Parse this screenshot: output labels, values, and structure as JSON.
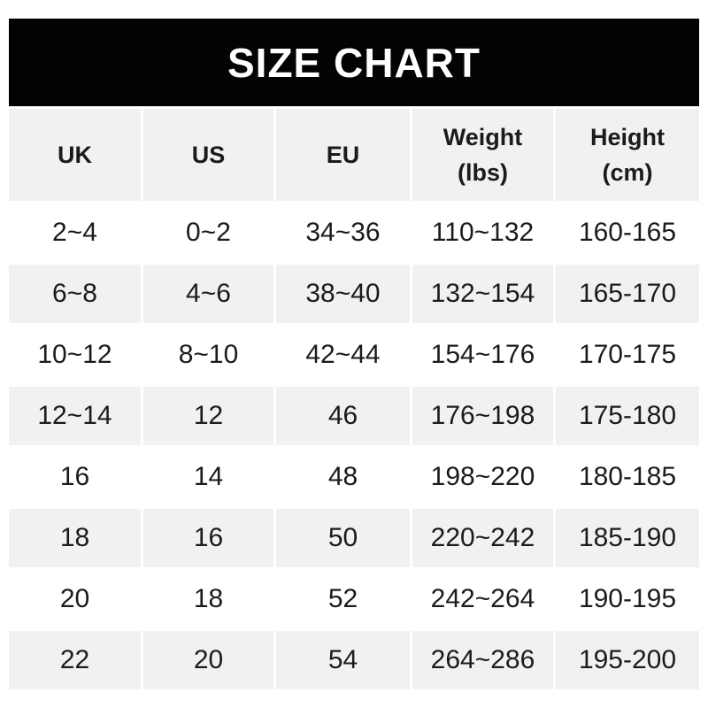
{
  "banner": {
    "title": "SIZE CHART",
    "bg_color": "#030303",
    "text_color": "#ffffff"
  },
  "chart_data": {
    "type": "table",
    "title": "SIZE CHART",
    "columns": [
      {
        "label": "UK",
        "sublabel": ""
      },
      {
        "label": "US",
        "sublabel": ""
      },
      {
        "label": "EU",
        "sublabel": ""
      },
      {
        "label": "Weight",
        "sublabel": "(lbs)"
      },
      {
        "label": "Height",
        "sublabel": "(cm)"
      }
    ],
    "rows": [
      [
        "2~4",
        "0~2",
        "34~36",
        "110~132",
        "160-165"
      ],
      [
        "6~8",
        "4~6",
        "38~40",
        "132~154",
        "165-170"
      ],
      [
        "10~12",
        "8~10",
        "42~44",
        "154~176",
        "170-175"
      ],
      [
        "12~14",
        "12",
        "46",
        "176~198",
        "175-180"
      ],
      [
        "16",
        "14",
        "48",
        "198~220",
        "180-185"
      ],
      [
        "18",
        "16",
        "50",
        "220~242",
        "185-190"
      ],
      [
        "20",
        "18",
        "52",
        "242~264",
        "190-195"
      ],
      [
        "22",
        "20",
        "54",
        "264~286",
        "195-200"
      ]
    ],
    "layout": {
      "striped": true,
      "header_bg": "#f1f1f1",
      "stripe_bg": "#f1f1f1",
      "row_bg": "#ffffff",
      "text_color": "#1b1b1b",
      "gutter_color": "#ffffff"
    }
  }
}
